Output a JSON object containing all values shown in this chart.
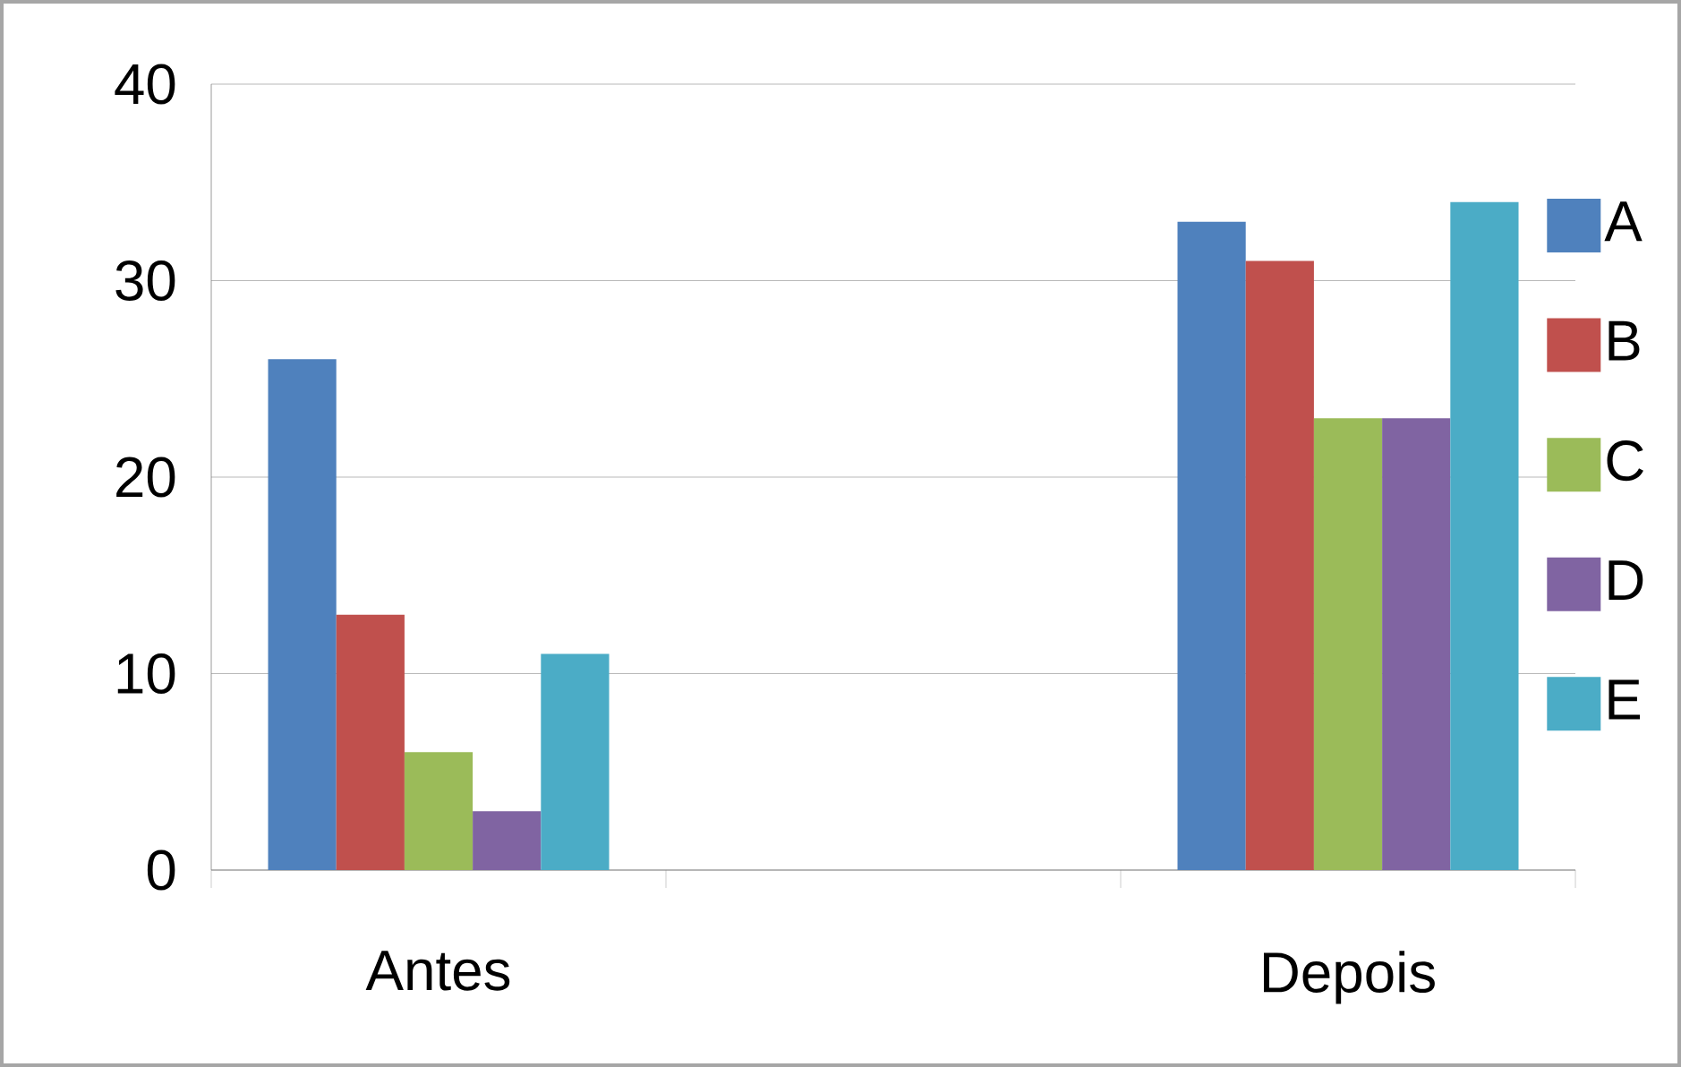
{
  "chart_data": {
    "type": "bar",
    "categories": [
      "Antes",
      null,
      "Depois"
    ],
    "series": [
      {
        "name": "A",
        "color": "#4f81bd",
        "values": [
          26,
          null,
          33
        ]
      },
      {
        "name": "B",
        "color": "#c0504d",
        "values": [
          13,
          null,
          31
        ]
      },
      {
        "name": "C",
        "color": "#9bbb59",
        "values": [
          6,
          null,
          23
        ]
      },
      {
        "name": "D",
        "color": "#8064a2",
        "values": [
          3,
          null,
          23
        ]
      },
      {
        "name": "E",
        "color": "#4bacc6",
        "values": [
          11,
          null,
          34
        ]
      }
    ],
    "ylim": [
      0,
      40
    ],
    "yticks": [
      0,
      10,
      20,
      30,
      40
    ],
    "grid": "y",
    "legend": "right"
  }
}
